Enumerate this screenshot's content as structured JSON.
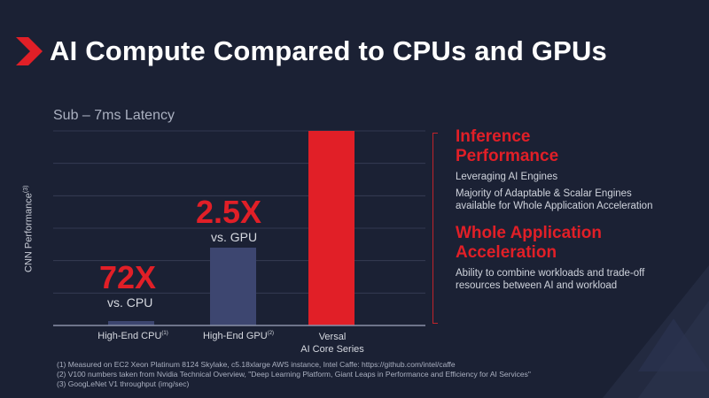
{
  "slide": {
    "title": "AI Compute Compared to CPUs and GPUs",
    "subtitle": "Sub – 7ms Latency",
    "callouts": {
      "cpu": {
        "multiplier": "72X",
        "label": "vs. CPU"
      },
      "gpu": {
        "multiplier": "2.5X",
        "label": "vs. GPU"
      }
    },
    "side_panel": {
      "section1_title_line1": "Inference",
      "section1_title_line2": "Performance",
      "section1_line1": "Leveraging AI Engines",
      "section1_line2": "Majority of Adaptable & Scalar Engines",
      "section1_line3": "available for Whole Application Acceleration",
      "section2_title_line1": "Whole Application",
      "section2_title_line2": "Acceleration",
      "section2_line1": "Ability to combine workloads and trade-off",
      "section2_line2": "resources between AI and workload"
    },
    "footnotes": [
      "(1)  Measured on EC2 Xeon Platinum 8124 Skylake, c5.18xlarge AWS instance, Intel Caffe:  https://github.com/intel/caffe",
      "(2) V100 numbers taken from Nvidia Technical Overview, \"Deep Learning Platform, Giant Leaps in Performance and Efficiency for AI Services\"",
      "(3) GoogLeNet V1 throughput (img/sec)"
    ]
  },
  "chart_data": {
    "type": "bar",
    "title": "Sub – 7ms Latency",
    "ylabel": "CNN Performance",
    "ylabel_sup": "(3)",
    "categories": [
      "High-End CPU",
      "High-End GPU",
      "Versal AI Core Series"
    ],
    "category_lines": [
      [
        "High-End CPU"
      ],
      [
        "High-End GPU"
      ],
      [
        "Versal",
        "AI Core Series"
      ]
    ],
    "category_sups": [
      "(1)",
      "(2)",
      ""
    ],
    "values": [
      1,
      28.8,
      72
    ],
    "ylim": [
      0,
      72
    ],
    "grid": true,
    "colors": [
      "#3d4670",
      "#3d4670",
      "#e11f27"
    ]
  },
  "colors": {
    "background": "#1b2134",
    "accent": "#e11f27",
    "bar": "#3d4670",
    "grid": "#3a4158"
  }
}
